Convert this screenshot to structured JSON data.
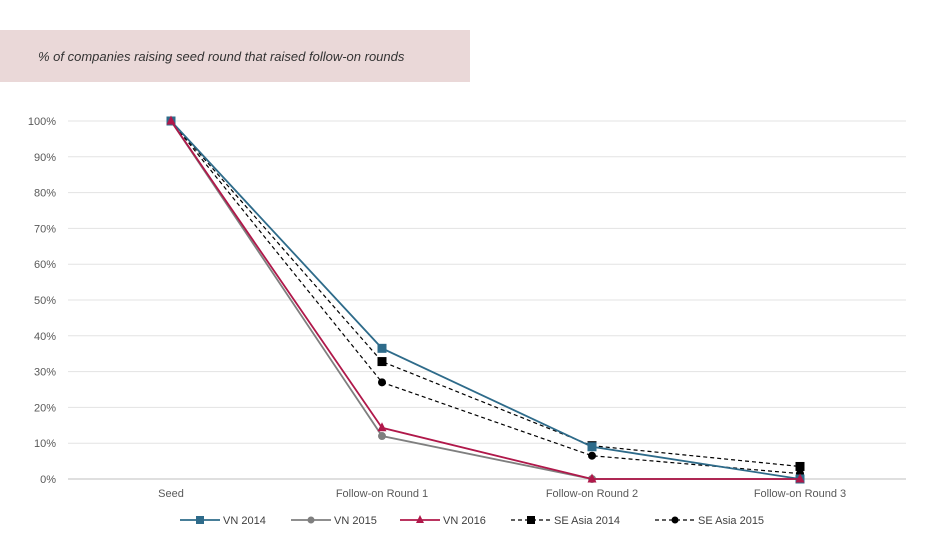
{
  "title": "% of companies raising seed round that raised follow-on rounds",
  "chart_data": {
    "type": "line",
    "title": "% of companies raising seed round that raised follow-on rounds",
    "categories": [
      "Seed",
      "Follow-on Round 1",
      "Follow-on Round 2",
      "Follow-on Round 3"
    ],
    "ylim": [
      0,
      100
    ],
    "y_ticks": [
      "0%",
      "10%",
      "20%",
      "30%",
      "40%",
      "50%",
      "60%",
      "70%",
      "80%",
      "90%",
      "100%"
    ],
    "grid": true,
    "legend_position": "bottom",
    "series": [
      {
        "name": "VN 2014",
        "values": [
          100,
          36.5,
          9,
          0
        ],
        "color": "#2e6b8a",
        "dash": false,
        "marker": "square"
      },
      {
        "name": "VN 2015",
        "values": [
          100,
          12,
          0,
          0
        ],
        "color": "#7f7f7f",
        "dash": false,
        "marker": "circle"
      },
      {
        "name": "VN 2016",
        "values": [
          100,
          14.3,
          0,
          0
        ],
        "color": "#b0184a",
        "dash": false,
        "marker": "triangle"
      },
      {
        "name": "SE Asia 2014",
        "values": [
          100,
          32.8,
          9.3,
          3.5
        ],
        "color": "#000000",
        "dash": true,
        "marker": "square"
      },
      {
        "name": "SE Asia 2015",
        "values": [
          100,
          27,
          6.5,
          1.5
        ],
        "color": "#000000",
        "dash": true,
        "marker": "circle"
      }
    ]
  }
}
